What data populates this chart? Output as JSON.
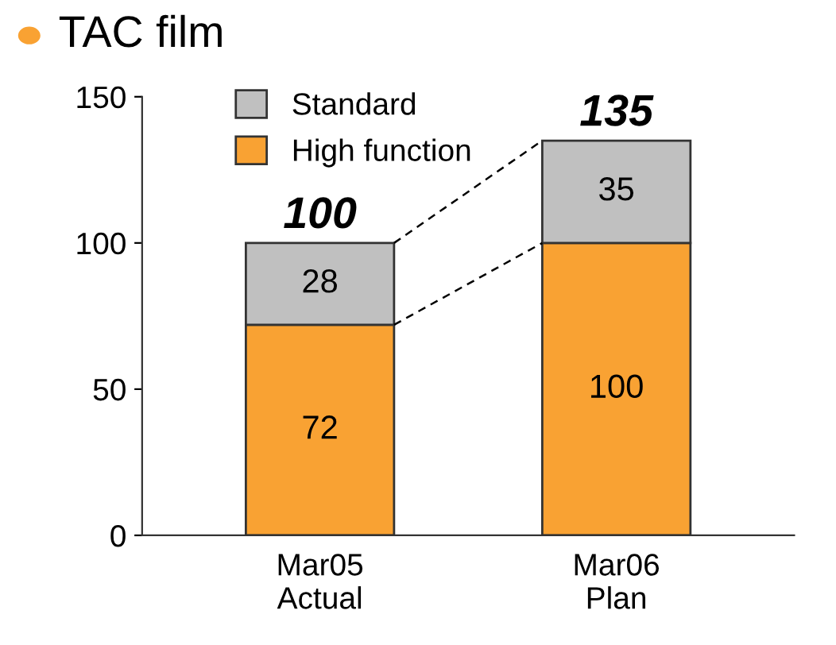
{
  "chart_data": {
    "type": "bar",
    "title": "TAC film",
    "stacked": true,
    "categories": [
      "Mar05\nActual",
      "Mar06\nPlan"
    ],
    "series": [
      {
        "name": "High function",
        "color": "#f9a233",
        "values": [
          72,
          100
        ]
      },
      {
        "name": "Standard",
        "color": "#c0c0c0",
        "values": [
          28,
          35
        ]
      }
    ],
    "data_labels": true,
    "totals": [
      "100",
      "135"
    ],
    "ylim": [
      0,
      150
    ],
    "yticks": [
      0,
      50,
      100,
      150
    ],
    "grid": false,
    "legend": "top left"
  }
}
